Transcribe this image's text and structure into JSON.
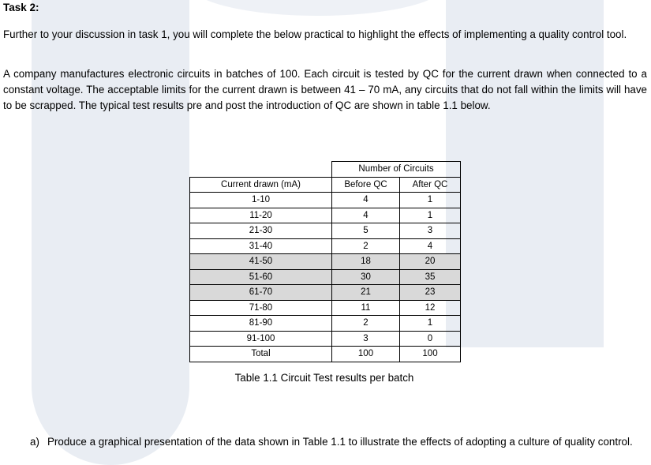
{
  "title": "Task 2:",
  "paragraphs": [
    "Further to your discussion in task 1, you will complete the below practical to highlight the effects of implementing a quality control tool.",
    "A company manufactures electronic circuits in batches of 100. Each circuit is tested by QC for the current drawn when connected to a constant voltage. The acceptable limits for the current drawn is between 41 – 70 mA, any circuits that do not fall within the limits will have to be scrapped. The typical test results pre and post the introduction of QC are shown in table 1.1 below."
  ],
  "table": {
    "group_header": "Number of Circuits",
    "headers": [
      "Current drawn (mA)",
      "Before QC",
      "After QC"
    ],
    "rows": [
      [
        "1-10",
        "4",
        "1"
      ],
      [
        "11-20",
        "4",
        "1"
      ],
      [
        "21-30",
        "5",
        "3"
      ],
      [
        "31-40",
        "2",
        "4"
      ],
      [
        "41-50",
        "18",
        "20"
      ],
      [
        "51-60",
        "30",
        "35"
      ],
      [
        "61-70",
        "21",
        "23"
      ],
      [
        "71-80",
        "11",
        "12"
      ],
      [
        "81-90",
        "2",
        "1"
      ],
      [
        "91-100",
        "3",
        "0"
      ],
      [
        "Total",
        "100",
        "100"
      ]
    ],
    "shaded_rows": [
      "41-50",
      "51-60",
      "61-70"
    ],
    "shade_color": "#d9d9d9"
  },
  "caption": "Table 1.1 Circuit Test results per batch",
  "question": {
    "label": "a)",
    "text": "Produce a graphical presentation of the data shown in Table 1.1 to illustrate the effects of adopting a culture of quality control."
  }
}
